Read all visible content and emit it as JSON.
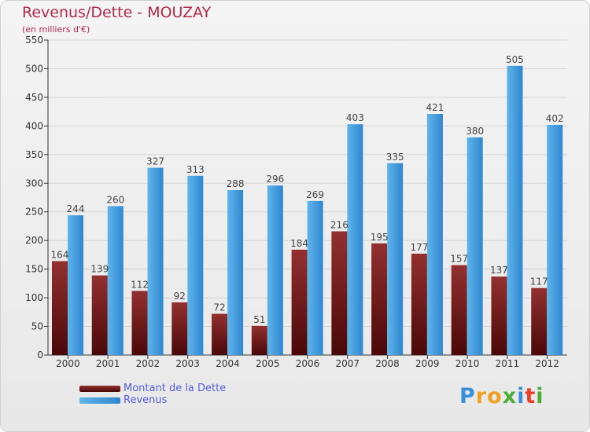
{
  "chart_data": {
    "type": "bar",
    "title": "Revenus/Dette - MOUZAY",
    "subtitle": "(en milliers d'€)",
    "categories": [
      "2000",
      "2001",
      "2002",
      "2003",
      "2004",
      "2005",
      "2006",
      "2007",
      "2008",
      "2009",
      "2010",
      "2011",
      "2012"
    ],
    "series": [
      {
        "name": "Montant de la Dette",
        "color": "#7a1c1c",
        "values": [
          164,
          139,
          112,
          92,
          72,
          51,
          184,
          216,
          195,
          177,
          157,
          137,
          117
        ]
      },
      {
        "name": "Revenus",
        "color": "#4aa3e0",
        "values": [
          244,
          260,
          327,
          313,
          288,
          296,
          269,
          403,
          335,
          421,
          380,
          505,
          402
        ]
      }
    ],
    "ylim": [
      0,
      550
    ],
    "yticks": [
      0,
      50,
      100,
      150,
      200,
      250,
      300,
      350,
      400,
      450,
      500,
      550
    ],
    "grid": true,
    "legend": "bottom-left"
  },
  "logo": {
    "letters": [
      {
        "ch": "P",
        "color": "#3b8fd8"
      },
      {
        "ch": "r",
        "color": "#f0a020"
      },
      {
        "ch": "o",
        "color": "#f0a020"
      },
      {
        "ch": "x",
        "color": "#4cae3a"
      },
      {
        "ch": "i",
        "color": "#3b8fd8"
      },
      {
        "ch": "t",
        "color": "#e8402a"
      },
      {
        "ch": "i",
        "color": "#4cae3a"
      }
    ]
  }
}
